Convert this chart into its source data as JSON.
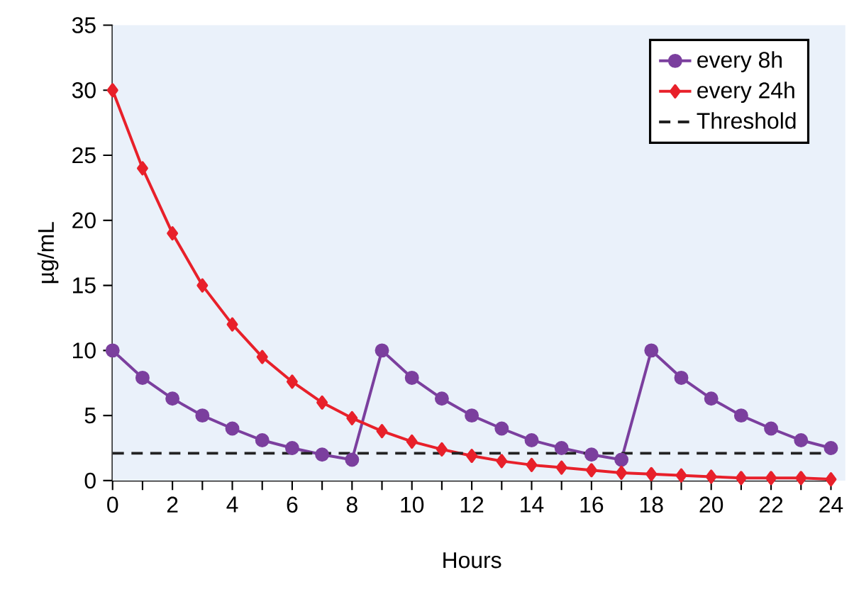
{
  "chart_data": {
    "type": "line",
    "xlabel": "Hours",
    "ylabel": "µg/mL",
    "x": [
      0,
      1,
      2,
      3,
      4,
      5,
      6,
      7,
      8,
      9,
      10,
      11,
      12,
      13,
      14,
      15,
      16,
      17,
      18,
      19,
      20,
      21,
      22,
      23,
      24
    ],
    "series": [
      {
        "name": "every 8h",
        "color": "#7b3f9e",
        "marker": "circle",
        "values": [
          10,
          7.9,
          6.3,
          5.0,
          4.0,
          3.1,
          2.5,
          2.0,
          1.6,
          10,
          7.9,
          6.3,
          5.0,
          4.0,
          3.1,
          2.5,
          2.0,
          1.6,
          10,
          7.9,
          6.3,
          5.0,
          4.0,
          3.1,
          2.5
        ]
      },
      {
        "name": "every 24h",
        "color": "#e8202a",
        "marker": "diamond",
        "values": [
          30,
          24,
          19,
          15,
          12,
          9.5,
          7.6,
          6.0,
          4.8,
          3.8,
          3.0,
          2.4,
          1.9,
          1.5,
          1.2,
          1.0,
          0.8,
          0.6,
          0.5,
          0.4,
          0.3,
          0.2,
          0.2,
          0.2,
          0.1
        ]
      }
    ],
    "ref_lines": [
      {
        "axis": "y",
        "value": 2.1,
        "label": "Threshold",
        "color": "#222222",
        "line_style": "dashed"
      }
    ],
    "xlim": [
      0,
      24
    ],
    "ylim": [
      0,
      35
    ],
    "xticks": [
      0,
      {
        "value": 1,
        "label": null
      },
      2,
      {
        "value": 3,
        "label": null
      },
      4,
      {
        "value": 5,
        "label": null
      },
      6,
      {
        "value": 7,
        "label": null
      },
      8,
      {
        "value": 9,
        "label": null
      },
      10,
      {
        "value": 11,
        "label": null
      },
      12,
      {
        "value": 13,
        "label": null
      },
      14,
      {
        "value": 15,
        "label": null
      },
      16,
      {
        "value": 17,
        "label": null
      },
      18,
      {
        "value": 19,
        "label": null
      },
      20,
      {
        "value": 21,
        "label": null
      },
      22,
      {
        "value": 23,
        "label": null
      },
      24
    ],
    "yticks": [
      0,
      5,
      10,
      15,
      20,
      25,
      30,
      35
    ],
    "grid": false,
    "legend": "top right",
    "line_style": "solid"
  }
}
